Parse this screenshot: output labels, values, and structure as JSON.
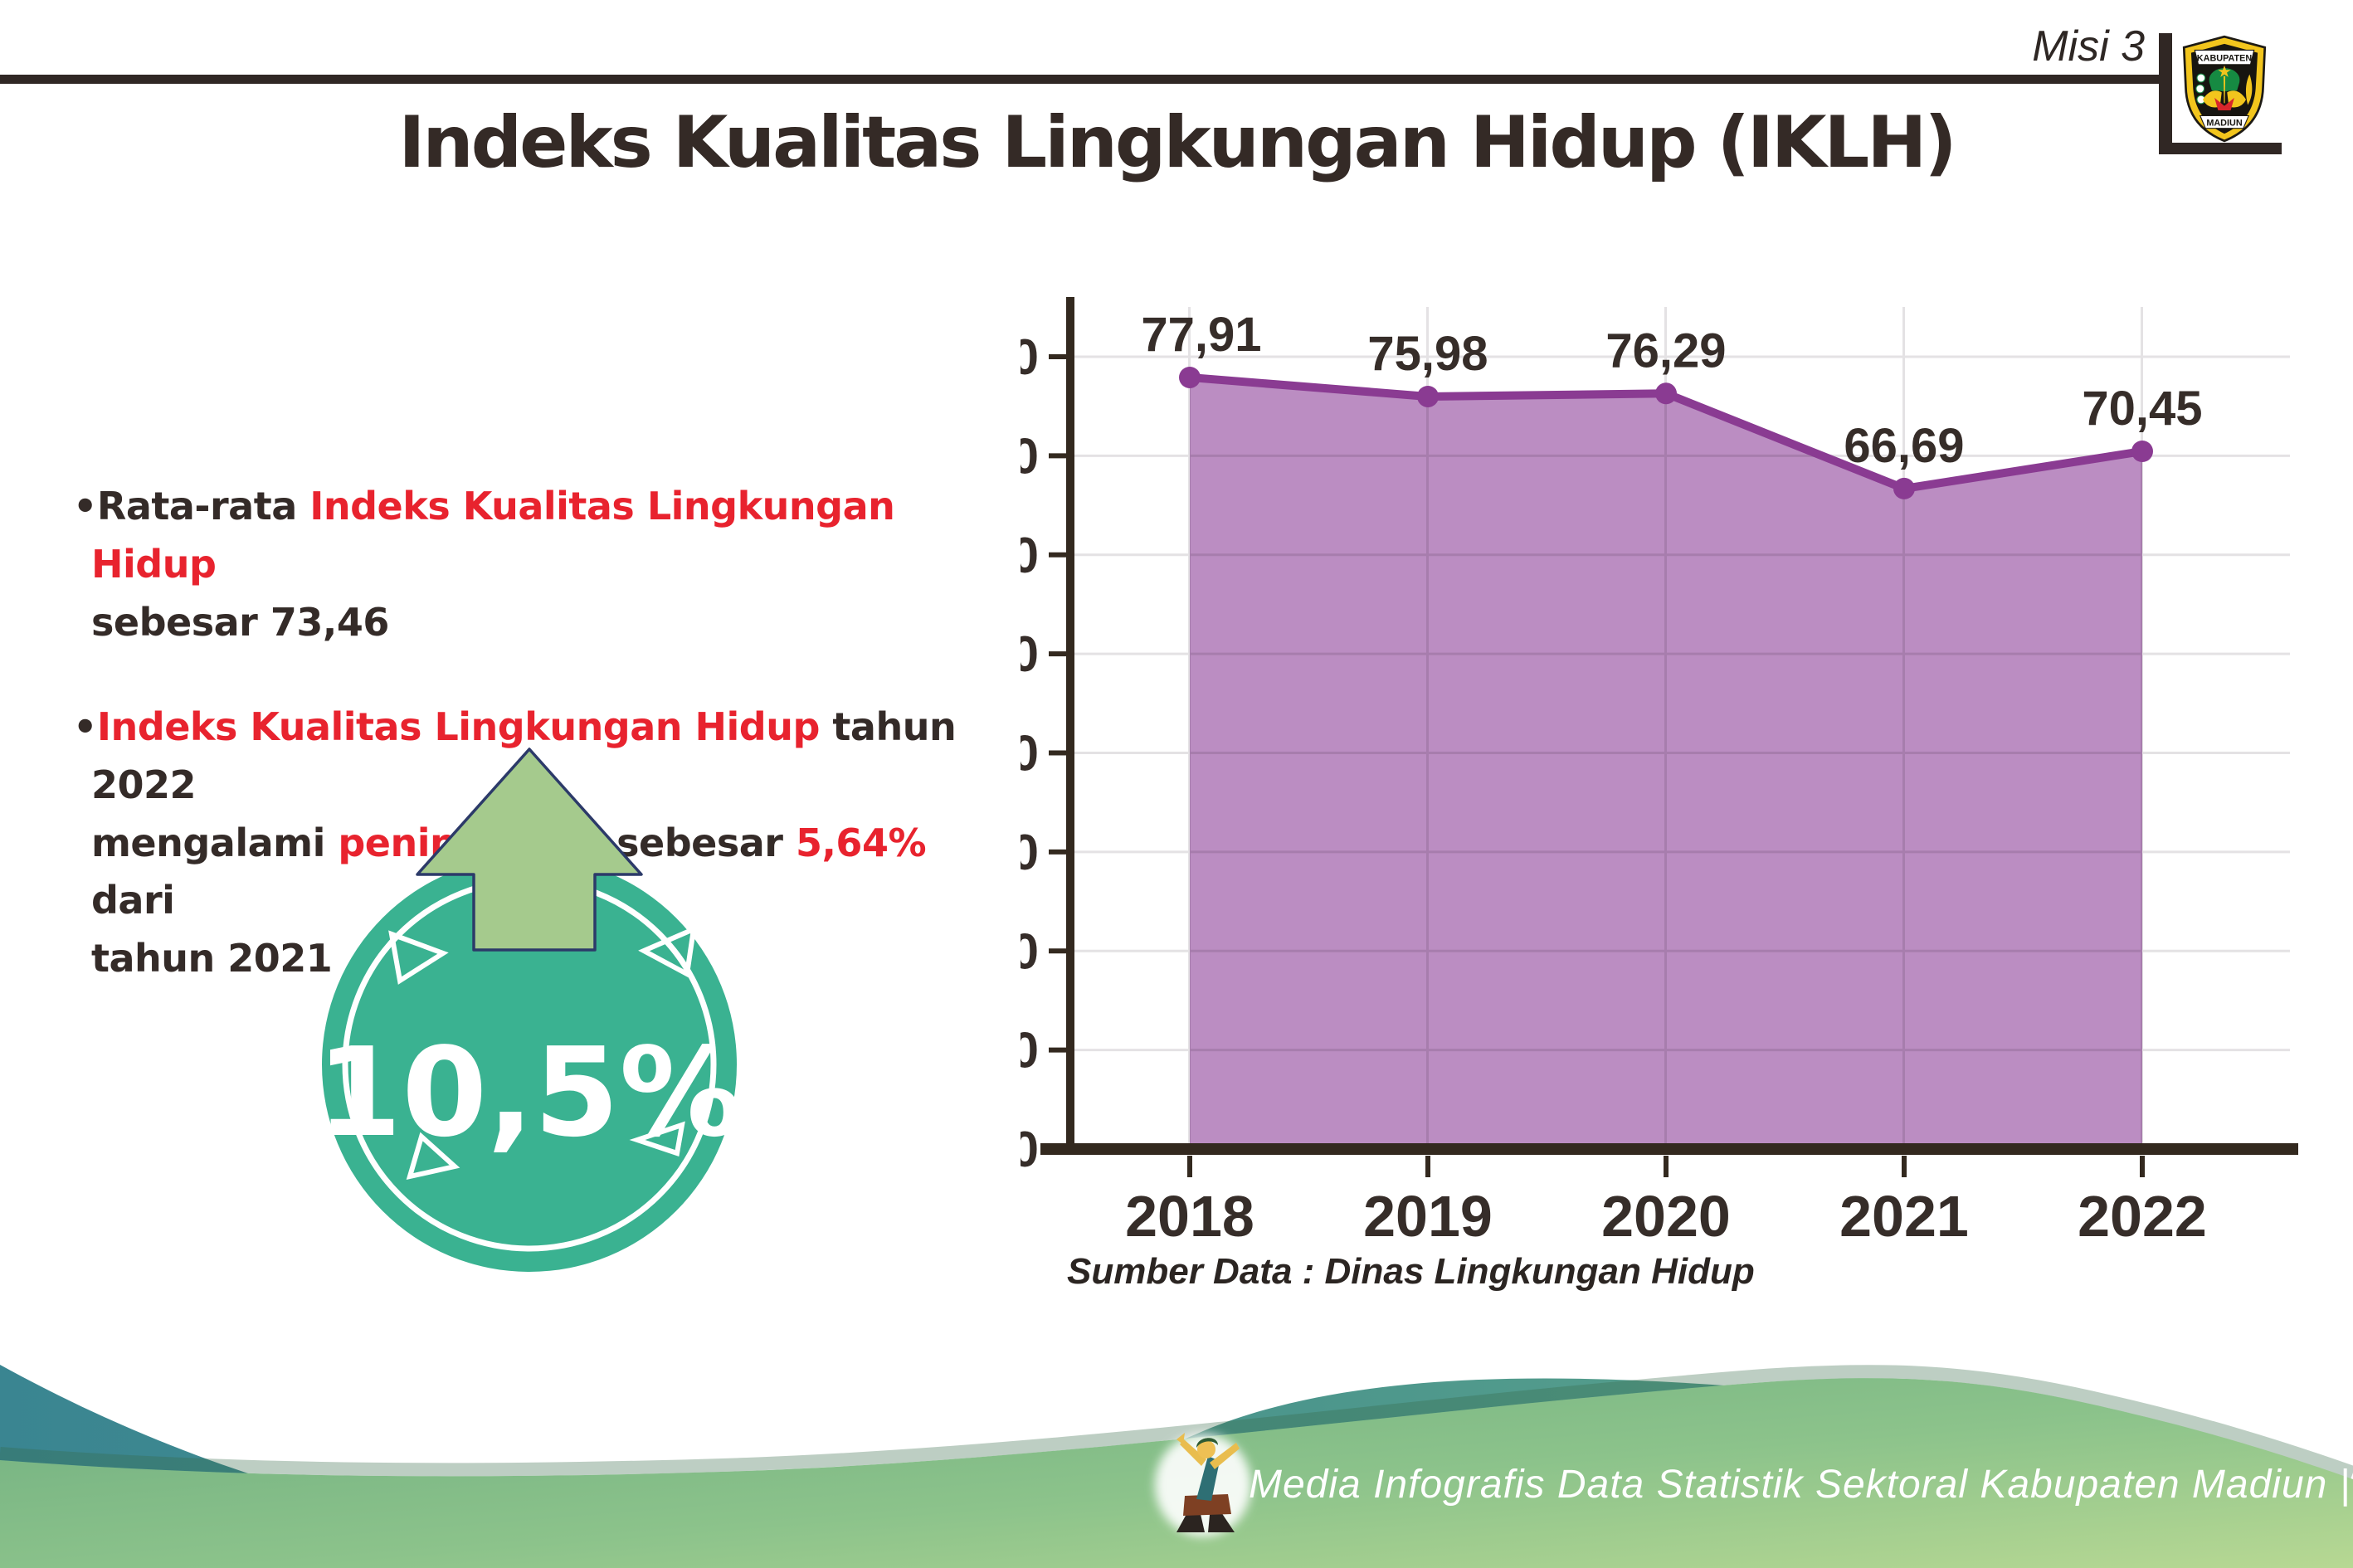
{
  "header": {
    "mission_label": "Misi 3",
    "title": "Indeks Kualitas Lingkungan Hidup (IKLH)"
  },
  "logo": {
    "top_text": "KABUPATEN",
    "bottom_text": "MADIUN"
  },
  "bullets": [
    {
      "segments": [
        "•Rata-rata ",
        "Indeks Kualitas Lingkungan Hidup",
        "sebesar 73,46"
      ]
    },
    {
      "segments": [
        "•",
        "Indeks Kualitas Lingkungan Hidup",
        " tahun 2022",
        "mengalami ",
        "peningkatan",
        " sebesar ",
        "5,64%",
        " dari",
        "tahun 2021"
      ]
    }
  ],
  "badge": {
    "value": "10,5%",
    "circle_color": "#3ab291",
    "arrow_color": "#a5ca8d",
    "arrow_outline": "#2c3a69"
  },
  "chart_data": {
    "type": "area",
    "categories": [
      "2018",
      "2019",
      "2020",
      "2021",
      "2022"
    ],
    "values": [
      77.91,
      75.98,
      76.29,
      66.69,
      70.45
    ],
    "value_labels": [
      "77,91",
      "75,98",
      "76,29",
      "66,69",
      "70,45"
    ],
    "ylim": [
      0,
      80
    ],
    "ytick_step": 10,
    "grid": true,
    "legend_position": "none",
    "line_color": "#8a3b92",
    "fill_color": "#bb8dc2",
    "axis_color": "#33291f",
    "label_color": "#362d29",
    "gridline_color": "#e4e2e4"
  },
  "source_label": "Sumber Data : Dinas Lingkungan Hidup",
  "footer": {
    "text": "Media Infografis Data Statistik Sektoral Kabupaten Madiun |"
  }
}
